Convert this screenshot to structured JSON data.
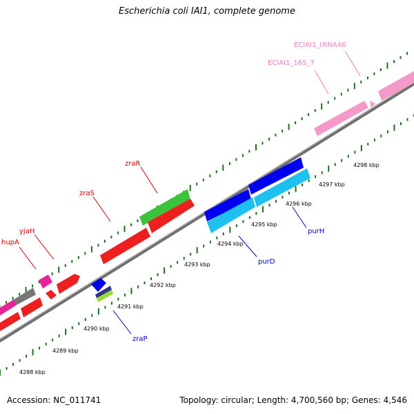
{
  "title": "Escherichia coli IAI1, complete genome",
  "footer": {
    "accession": "Accession: NC_011741",
    "summary": "Topology: circular; Length: 4,700,560 bp; Genes: 4,546"
  },
  "colors": {
    "backbone": "#7f7f7f",
    "tick": "#1e6e1e",
    "label_red": "#cc0000",
    "label_blue": "#0000cc",
    "label_pink": "#f07cc0"
  },
  "ticks": [
    "4288 kbp",
    "4289 kbp",
    "4290 kbp",
    "4291 kbp",
    "4292 kbp",
    "4293 kbp",
    "4294 kbp",
    "4295 kbp",
    "4296 kbp",
    "4297 kbp",
    "4298 kbp"
  ],
  "labels": {
    "hupA": "hupA",
    "yjaH": "yjaH",
    "zraS": "zraS",
    "zraR": "zraR",
    "zraP": "zraP",
    "purD": "purD",
    "purH": "purH",
    "rrs": "ECIAI1_16S_7",
    "trna": "ECIAI1_tRNA46"
  }
}
